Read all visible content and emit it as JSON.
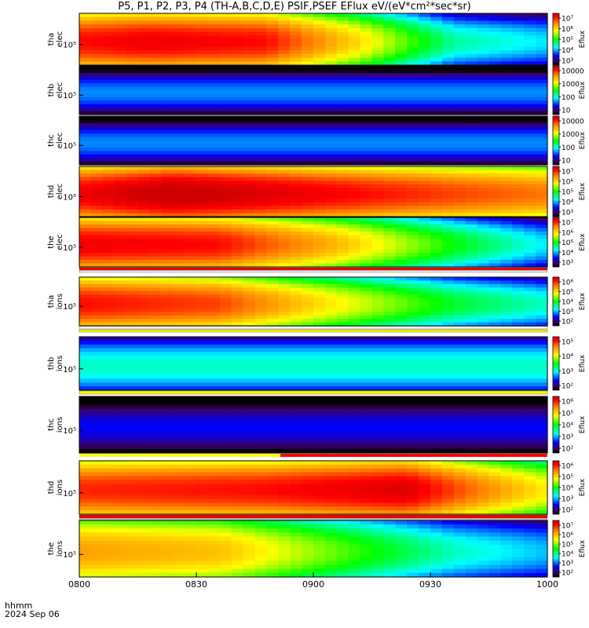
{
  "chart_data": {
    "type": "heatmap",
    "title": "P5, P1, P2, P3, P4 (TH-A,B,C,D,E) PSIF,PSEF EFlux eV/(eV*cm²*sec*sr)",
    "xaxis": {
      "date": "2024 Sep 06",
      "format_label": "hhmm",
      "range": [
        "0800",
        "1000"
      ],
      "ticks": [
        "0800",
        "0830",
        "0900",
        "0930",
        "1000"
      ]
    },
    "colorbar_label": "Eflux",
    "panels": [
      {
        "probe": "tha",
        "species": "elec",
        "ytick": "10⁵",
        "cb_ticks": [
          "10⁷",
          "10⁶",
          "10⁵",
          "10⁴",
          "10³"
        ],
        "cb_range": [
          1000,
          10000000
        ],
        "profile": [
          [
            0,
            6.4
          ],
          [
            0.15,
            6.5
          ],
          [
            0.4,
            6.4
          ],
          [
            0.6,
            5.5
          ],
          [
            0.8,
            4.3
          ],
          [
            1,
            4.0
          ]
        ]
      },
      {
        "probe": "thb",
        "species": "elec",
        "ytick": "10⁵",
        "cb_ticks": [
          "10000",
          "1000",
          "100",
          "10"
        ],
        "cb_range": [
          10,
          10000
        ],
        "profile": [
          [
            0,
            1.5
          ],
          [
            1,
            1.5
          ]
        ]
      },
      {
        "probe": "thc",
        "species": "elec",
        "ytick": "10⁵",
        "cb_ticks": [
          "10000",
          "1000",
          "100",
          "10"
        ],
        "cb_range": [
          10,
          10000
        ],
        "profile": [
          [
            0,
            1.5
          ],
          [
            1,
            1.5
          ]
        ]
      },
      {
        "probe": "thd",
        "species": "elec",
        "ytick": "10⁵",
        "cb_ticks": [
          "10⁷",
          "10⁶",
          "10⁵",
          "10⁴",
          "10³"
        ],
        "cb_range": [
          1000,
          10000000
        ],
        "profile": [
          [
            0,
            6.5
          ],
          [
            0.2,
            6.8
          ],
          [
            0.4,
            6.6
          ],
          [
            0.7,
            6.3
          ],
          [
            1,
            6.0
          ]
        ]
      },
      {
        "probe": "the",
        "species": "elec",
        "ytick": "10⁵",
        "cb_ticks": [
          "10⁷",
          "10⁶",
          "10⁵",
          "10⁴",
          "10³"
        ],
        "cb_range": [
          1000,
          10000000
        ],
        "profile": [
          [
            0,
            6.5
          ],
          [
            0.3,
            6.4
          ],
          [
            0.55,
            5.7
          ],
          [
            0.8,
            4.7
          ],
          [
            1,
            4.0
          ]
        ]
      },
      {
        "probe": "tha",
        "species": "ions",
        "ytick": "10⁵",
        "cb_ticks": [
          "10⁶",
          "10⁵",
          "10⁴",
          "10³",
          "10²"
        ],
        "cb_range": [
          100,
          1000000
        ],
        "profile": [
          [
            0,
            5.4
          ],
          [
            0.3,
            5.2
          ],
          [
            0.55,
            4.4
          ],
          [
            0.8,
            3.6
          ],
          [
            1,
            3.2
          ]
        ]
      },
      {
        "probe": "thb",
        "species": "ions",
        "ytick": "10⁵",
        "cb_ticks": [
          "10⁵",
          "10⁴",
          "10³",
          "10²"
        ],
        "cb_range": [
          100,
          1000000
        ],
        "profile": [
          [
            0,
            3.2
          ],
          [
            1,
            3.2
          ]
        ]
      },
      {
        "probe": "thc",
        "species": "ions",
        "ytick": "10⁵",
        "cb_ticks": [
          "10⁶",
          "10⁵",
          "10⁴",
          "10³",
          "10²"
        ],
        "cb_range": [
          100,
          1000000
        ],
        "profile": [
          [
            0,
            2.4
          ],
          [
            1,
            2.4
          ]
        ]
      },
      {
        "probe": "thd",
        "species": "ions",
        "ytick": "10⁵",
        "cb_ticks": [
          "10⁶",
          "10⁵",
          "10⁴",
          "10³",
          "10²"
        ],
        "cb_range": [
          100,
          1000000
        ],
        "profile": [
          [
            0,
            5.3
          ],
          [
            0.4,
            5.4
          ],
          [
            0.7,
            5.6
          ],
          [
            0.9,
            4.8
          ],
          [
            1,
            4.4
          ]
        ]
      },
      {
        "probe": "the",
        "species": "ions",
        "ytick": "10⁵",
        "cb_ticks": [
          "10⁷",
          "10⁶",
          "10⁵",
          "10⁴",
          "10³",
          "10²"
        ],
        "cb_range": [
          100,
          10000000
        ],
        "profile": [
          [
            0,
            5.6
          ],
          [
            0.3,
            5.4
          ],
          [
            0.55,
            4.5
          ],
          [
            0.8,
            3.6
          ],
          [
            1,
            3.2
          ]
        ]
      }
    ]
  },
  "colors": {
    "status_red": "#ff0000",
    "status_yellow": "#ffff00",
    "status_white": "#ffffff",
    "fill_gap": "#000000"
  }
}
